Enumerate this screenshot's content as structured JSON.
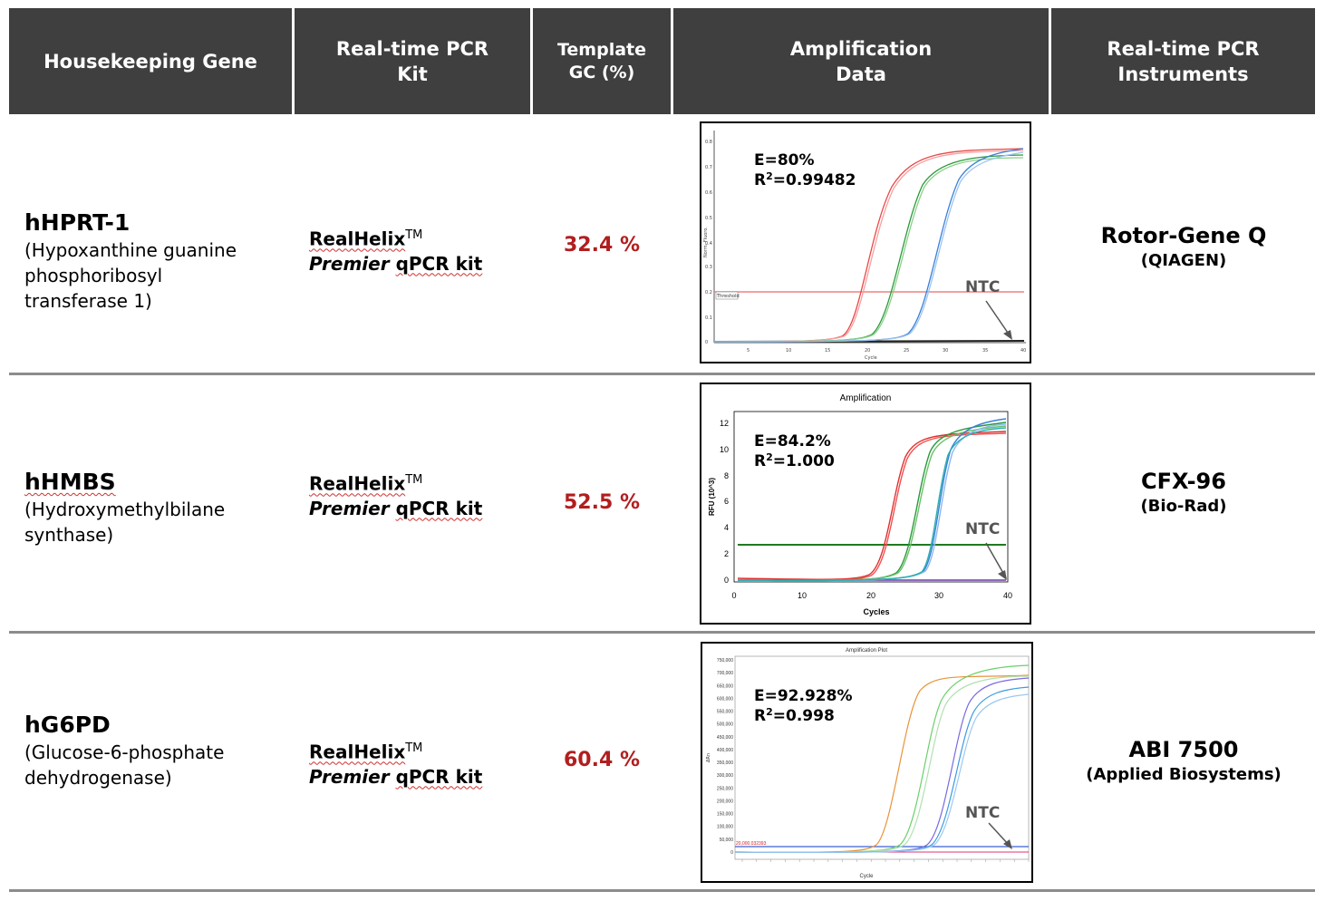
{
  "header": {
    "col1": "Housekeeping Gene",
    "col2_line1": "Real-time PCR",
    "col2_line2": "Kit",
    "col3_line1": "Template",
    "col3_line2": "GC (%)",
    "col4_line1": "Amplification",
    "col4_line2": "Data",
    "col5_line1": "Real-time PCR",
    "col5_line2": "Instruments",
    "background": "#3f3f3f"
  },
  "kit": {
    "brand": "RealHelix",
    "tm": "TM",
    "premier": "Premier",
    "rest": "qPCR kit"
  },
  "rows": [
    {
      "gene": "hHPRT-1",
      "full_name": [
        "(Hypoxanthine guanine",
        "phosphoribosyl",
        "transferase 1)"
      ],
      "gc": "32.4 %",
      "instrument": "Rotor-Gene Q",
      "maker": "(QIAGEN)",
      "plot": {
        "efficiency": "E=80%",
        "r2_prefix": "R",
        "r2_sup": "2",
        "r2_value": "=0.99482",
        "ntc": "NTC",
        "threshold_label": "Threshold",
        "x_axis_label": "Cycle",
        "y_axis_label": "Norm. Fluoro.",
        "x_ticks": [
          "5",
          "10",
          "15",
          "20",
          "25",
          "30",
          "35",
          "40"
        ],
        "y_ticks": [
          "0.8",
          "0.7",
          "0.6",
          "0.5",
          "0.4",
          "0.3",
          "0.2",
          "0.1",
          "0"
        ]
      }
    },
    {
      "gene": "hHMBS",
      "full_name": [
        "(Hydroxymethylbilane",
        "synthase)"
      ],
      "gc": "52.5 %",
      "instrument": "CFX-96",
      "maker": "(Bio-Rad)",
      "plot": {
        "title": "Amplification",
        "efficiency": "E=84.2%",
        "r2_prefix": "R",
        "r2_sup": "2",
        "r2_value": "=1.000",
        "ntc": "NTC",
        "x_axis_label": "Cycles",
        "y_axis_label": "RFU (10^3)",
        "x_ticks": [
          "0",
          "10",
          "20",
          "30",
          "40"
        ],
        "y_ticks": [
          "12",
          "10",
          "8",
          "6",
          "4",
          "2",
          "0"
        ]
      }
    },
    {
      "gene": "hG6PD",
      "full_name": [
        "(Glucose-6-phosphate",
        "dehydrogenase)"
      ],
      "gc": "60.4 %",
      "instrument": "ABI 7500",
      "maker": "(Applied Biosystems)",
      "plot": {
        "title": "Amplification Plot",
        "efficiency": "E=92.928%",
        "r2_prefix": "R",
        "r2_sup": "2",
        "r2_value": "=0.998",
        "ntc": "NTC",
        "threshold_label": "20,000.032393",
        "x_axis_label": "Cycle",
        "y_axis_label": "ΔRn",
        "y_ticks": [
          "750,000",
          "700,000",
          "650,000",
          "600,000",
          "550,000",
          "500,000",
          "450,000",
          "400,000",
          "350,000",
          "300,000",
          "250,000",
          "200,000",
          "150,000",
          "100,000",
          "50,000",
          "0"
        ]
      }
    }
  ],
  "colors": {
    "gc_text": "#b21e1e",
    "separator": "#8c8c8c",
    "red_curve": "#e03030",
    "green_curve": "#2a9a3a",
    "blue_curve": "#3a7fd8",
    "orange_curve": "#e8933a"
  }
}
